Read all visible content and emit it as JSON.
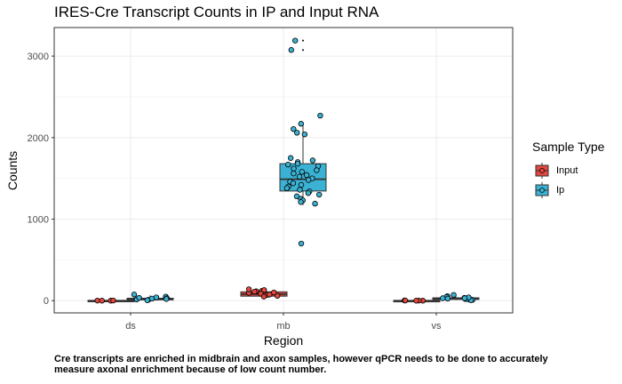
{
  "chart_data": {
    "type": "boxplot",
    "title": "IRES-Cre Transcript Counts in IP and Input RNA",
    "xlabel": "Region",
    "ylabel": "Counts",
    "categories": [
      "ds",
      "mb",
      "vs"
    ],
    "ylim": [
      -150,
      3350
    ],
    "yticks": [
      0,
      1000,
      2000,
      3000
    ],
    "grid": true,
    "legend": {
      "title": "Sample Type",
      "position": "right"
    },
    "series": [
      {
        "name": "Input",
        "color": "#e2483f",
        "boxes": [
          {
            "category": "ds",
            "min": 0,
            "q1": 0,
            "median": 0,
            "q3": 3,
            "max": 5
          },
          {
            "category": "mb",
            "min": 45,
            "q1": 55,
            "median": 80,
            "q3": 108,
            "max": 135
          },
          {
            "category": "vs",
            "min": 0,
            "q1": 0,
            "median": 0,
            "q3": 2,
            "max": 4
          }
        ],
        "points": {
          "ds": [
            0,
            2,
            1,
            0
          ],
          "mb": [
            120,
            130,
            95,
            60,
            70,
            85,
            115,
            100,
            75,
            140,
            50,
            110
          ],
          "vs": [
            0,
            3,
            1,
            0,
            2
          ]
        }
      },
      {
        "name": "Ip",
        "color": "#3bb2d3",
        "boxes": [
          {
            "category": "ds",
            "min": 5,
            "q1": 10,
            "median": 20,
            "q3": 30,
            "max": 65
          },
          {
            "category": "mb",
            "min": 1170,
            "q1": 1345,
            "median": 1490,
            "q3": 1680,
            "max": 2160
          },
          {
            "category": "vs",
            "min": 8,
            "q1": 15,
            "median": 25,
            "q3": 35,
            "max": 70
          }
        ],
        "points": {
          "ds": [
            75,
            50,
            30,
            15,
            10,
            20,
            35,
            5,
            25,
            40
          ],
          "mb": [
            3190,
            3075,
            2270,
            2170,
            2105,
            2040,
            2060,
            1750,
            1720,
            1700,
            1680,
            1670,
            1650,
            1620,
            1600,
            1580,
            1560,
            1540,
            1520,
            1500,
            1480,
            1460,
            1440,
            1420,
            1400,
            1380,
            1360,
            1340,
            1320,
            1300,
            1280,
            1250,
            1230,
            1210,
            1190,
            700
          ],
          "vs": [
            70,
            55,
            45,
            35,
            30,
            25,
            20,
            15,
            10,
            5,
            40,
            30
          ]
        },
        "outliers": {
          "mb": [
            3190,
            3075
          ]
        }
      }
    ]
  },
  "caption": "Cre transcripts are enriched in midbrain and axon samples, however qPCR needs to be done to accurately measure axonal enrichment because of low count number."
}
